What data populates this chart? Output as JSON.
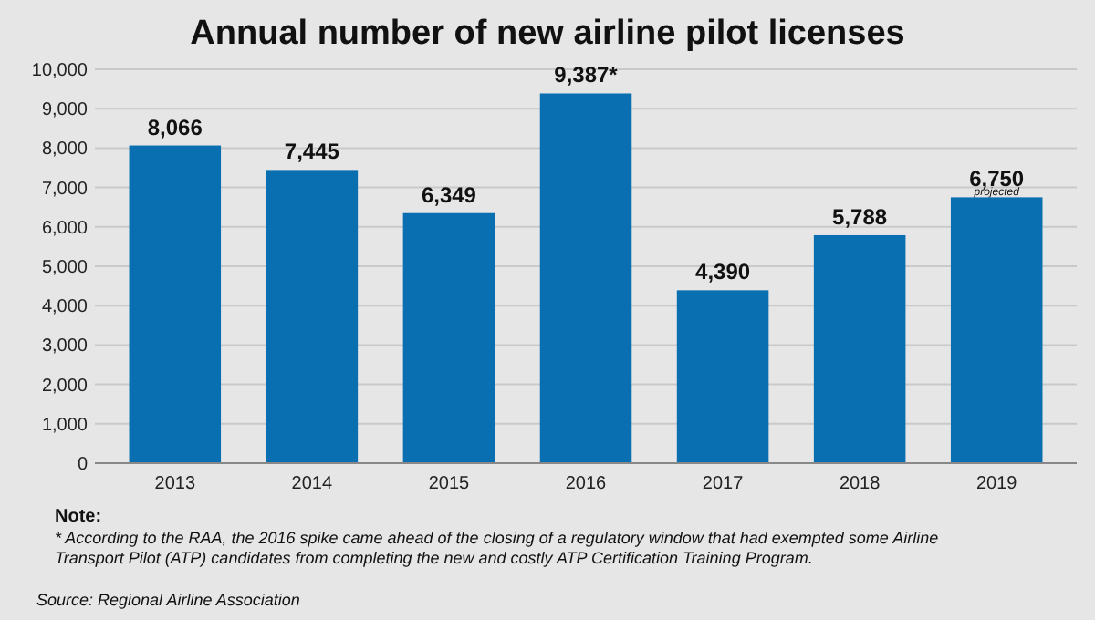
{
  "chart_data": {
    "type": "bar",
    "title": "Annual number of new airline pilot licenses",
    "categories": [
      "2013",
      "2014",
      "2015",
      "2016",
      "2017",
      "2018",
      "2019"
    ],
    "values": [
      8066,
      7445,
      6349,
      9387,
      4390,
      5788,
      6750
    ],
    "value_labels": [
      "8,066",
      "7,445",
      "6,349",
      "9,387*",
      "4,390",
      "5,788",
      "6,750"
    ],
    "color": "#0a6fb0",
    "ylim": [
      0,
      10000
    ],
    "yticks": [
      {
        "value": 0,
        "label": "0"
      },
      {
        "value": 1000,
        "label": "1,000"
      },
      {
        "value": 2000,
        "label": "2,000"
      },
      {
        "value": 3000,
        "label": "3,000"
      },
      {
        "value": 4000,
        "label": "4,000"
      },
      {
        "value": 5000,
        "label": "5,000"
      },
      {
        "value": 6000,
        "label": "6,000"
      },
      {
        "value": 7000,
        "label": "7,000"
      },
      {
        "value": 8000,
        "label": "8,000"
      },
      {
        "value": 9000,
        "label": "9,000"
      },
      {
        "value": 10000,
        "label": "10,000"
      }
    ],
    "grid": "y",
    "annotations": [
      {
        "text": "projected",
        "x": "2019",
        "y": 6750
      },
      "Note:",
      "* According to the RAA, the 2016 spike came ahead of the closing of a regulatory window that had exempted some Airline Transport Pilot (ATP) candidates from completing the new and costly ATP Certification Training Program.",
      "Source: Regional Airline Association"
    ]
  }
}
